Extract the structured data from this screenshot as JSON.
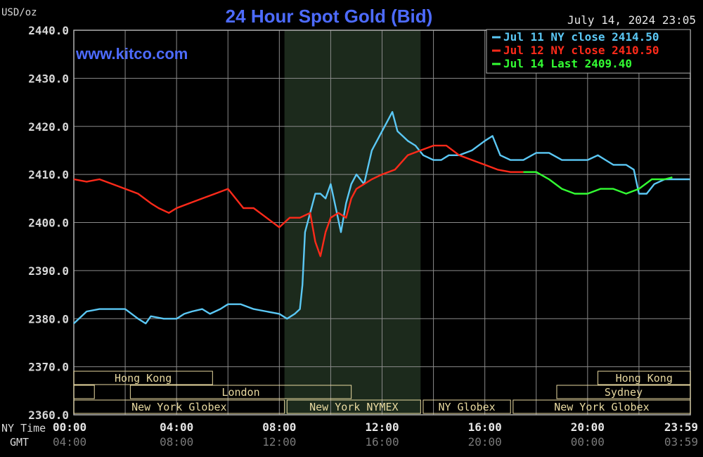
{
  "unit_label": "USD/oz",
  "title": "24 Hour Spot Gold (Bid)",
  "timestamp": "July 14, 2024 23:05",
  "watermark": "www.kitco.com",
  "colors": {
    "title": "#4d6bff",
    "watermark": "#4d6bff",
    "jul11": "#5bc8f5",
    "jul12": "#ff2a1a",
    "jul14": "#33ff33",
    "grid": "#8a8a8a",
    "axis_text": "#d8d8d8",
    "session_fill": "#1c2a1c",
    "session_text": "#e8d9a0"
  },
  "chart_data": {
    "type": "line",
    "ylim": [
      2360,
      2440
    ],
    "xlim": [
      0,
      24
    ],
    "grid": true,
    "y_ticks": [
      "2360.0",
      "2370.0",
      "2380.0",
      "2390.0",
      "2400.0",
      "2410.0",
      "2420.0",
      "2430.0",
      "2440.0"
    ],
    "ny_time_label": "NY Time",
    "gmt_label": "GMT",
    "x_ticks_ny": [
      "00:00",
      "04:00",
      "08:00",
      "12:00",
      "16:00",
      "20:00",
      "23:59"
    ],
    "x_ticks_gmt": [
      "04:00",
      "08:00",
      "12:00",
      "16:00",
      "20:00",
      "00:00",
      "03:59"
    ],
    "series": [
      {
        "name": "Jul 11 NY close 2414.50",
        "color": "#5bc8f5",
        "points": [
          [
            0,
            2379
          ],
          [
            0.5,
            2381.5
          ],
          [
            1,
            2382
          ],
          [
            1.5,
            2382
          ],
          [
            2,
            2382
          ],
          [
            2.5,
            2380
          ],
          [
            2.8,
            2379
          ],
          [
            3,
            2380.5
          ],
          [
            3.5,
            2380
          ],
          [
            4,
            2380
          ],
          [
            4.3,
            2381
          ],
          [
            4.6,
            2381.5
          ],
          [
            5,
            2382
          ],
          [
            5.3,
            2381
          ],
          [
            5.7,
            2382
          ],
          [
            6,
            2383
          ],
          [
            6.5,
            2383
          ],
          [
            7,
            2382
          ],
          [
            7.5,
            2381.5
          ],
          [
            8,
            2381
          ],
          [
            8.3,
            2380
          ],
          [
            8.6,
            2381
          ],
          [
            8.8,
            2382
          ],
          [
            8.9,
            2387
          ],
          [
            9.0,
            2398
          ],
          [
            9.2,
            2402
          ],
          [
            9.4,
            2406
          ],
          [
            9.6,
            2406
          ],
          [
            9.8,
            2405
          ],
          [
            10.0,
            2408
          ],
          [
            10.2,
            2403
          ],
          [
            10.4,
            2398
          ],
          [
            10.6,
            2404
          ],
          [
            10.8,
            2408
          ],
          [
            11.0,
            2410
          ],
          [
            11.3,
            2408
          ],
          [
            11.6,
            2415
          ],
          [
            12.0,
            2419
          ],
          [
            12.2,
            2421
          ],
          [
            12.4,
            2423
          ],
          [
            12.6,
            2419
          ],
          [
            12.8,
            2418
          ],
          [
            13.0,
            2417
          ],
          [
            13.3,
            2416
          ],
          [
            13.6,
            2414
          ],
          [
            14.0,
            2413
          ],
          [
            14.3,
            2413
          ],
          [
            14.6,
            2414
          ],
          [
            15.0,
            2414
          ],
          [
            15.5,
            2415
          ],
          [
            16.0,
            2417
          ],
          [
            16.3,
            2418
          ],
          [
            16.6,
            2414
          ],
          [
            17.0,
            2413
          ],
          [
            17.5,
            2413
          ],
          [
            18.0,
            2414.5
          ],
          [
            18.5,
            2414.5
          ],
          [
            19.0,
            2413
          ],
          [
            19.5,
            2413
          ],
          [
            20.0,
            2413
          ],
          [
            20.4,
            2414
          ],
          [
            20.7,
            2413
          ],
          [
            21.0,
            2412
          ],
          [
            21.5,
            2412
          ],
          [
            21.8,
            2411
          ],
          [
            22.0,
            2406
          ],
          [
            22.3,
            2406
          ],
          [
            22.6,
            2408
          ],
          [
            23.0,
            2409
          ],
          [
            23.5,
            2409
          ],
          [
            23.98,
            2409
          ]
        ]
      },
      {
        "name": "Jul 12 NY close 2410.50",
        "color": "#ff2a1a",
        "points": [
          [
            0,
            2409
          ],
          [
            0.5,
            2408.5
          ],
          [
            1,
            2409
          ],
          [
            1.5,
            2408
          ],
          [
            2,
            2407
          ],
          [
            2.5,
            2406
          ],
          [
            3,
            2404
          ],
          [
            3.3,
            2403
          ],
          [
            3.7,
            2402
          ],
          [
            4,
            2403
          ],
          [
            4.5,
            2404
          ],
          [
            5,
            2405
          ],
          [
            5.5,
            2406
          ],
          [
            6,
            2407
          ],
          [
            6.3,
            2405
          ],
          [
            6.6,
            2403
          ],
          [
            7,
            2403
          ],
          [
            7.5,
            2401
          ],
          [
            8,
            2399
          ],
          [
            8.4,
            2401
          ],
          [
            8.8,
            2401
          ],
          [
            9.2,
            2402
          ],
          [
            9.4,
            2396
          ],
          [
            9.6,
            2393
          ],
          [
            9.8,
            2398
          ],
          [
            10.0,
            2401
          ],
          [
            10.3,
            2402
          ],
          [
            10.6,
            2401
          ],
          [
            10.8,
            2405
          ],
          [
            11.0,
            2407
          ],
          [
            11.3,
            2408
          ],
          [
            11.6,
            2409
          ],
          [
            12.0,
            2410
          ],
          [
            12.5,
            2411
          ],
          [
            13.0,
            2414
          ],
          [
            13.5,
            2415
          ],
          [
            14.0,
            2416
          ],
          [
            14.5,
            2416
          ],
          [
            15.0,
            2414
          ],
          [
            15.5,
            2413
          ],
          [
            16.0,
            2412
          ],
          [
            16.5,
            2411
          ],
          [
            17.0,
            2410.5
          ],
          [
            17.5,
            2410.5
          ]
        ]
      },
      {
        "name": "Jul 14 Last 2409.40",
        "color": "#33ff33",
        "points": [
          [
            17.5,
            2410.5
          ],
          [
            18.0,
            2410.5
          ],
          [
            18.5,
            2409
          ],
          [
            19.0,
            2407
          ],
          [
            19.5,
            2406
          ],
          [
            20.0,
            2406
          ],
          [
            20.5,
            2407
          ],
          [
            21.0,
            2407
          ],
          [
            21.5,
            2406
          ],
          [
            22.0,
            2407
          ],
          [
            22.5,
            2409
          ],
          [
            23.0,
            2409
          ],
          [
            23.3,
            2409.4
          ]
        ]
      }
    ],
    "legend": [
      {
        "label": "Jul 11 NY close 2414.50",
        "color": "#5bc8f5"
      },
      {
        "label": "Jul 12 NY close 2410.50",
        "color": "#ff2a1a"
      },
      {
        "label": "Jul 14 Last 2409.40",
        "color": "#33ff33"
      }
    ],
    "legend_position": "top-right",
    "highlight_band": [
      8.2,
      13.5
    ],
    "sessions": [
      {
        "label": "Hong Kong",
        "row": 0,
        "start": 0.0,
        "end": 5.4
      },
      {
        "label": "",
        "row": 1,
        "start": 0.0,
        "end": 0.8
      },
      {
        "label": "London",
        "row": 1,
        "start": 2.2,
        "end": 10.8
      },
      {
        "label": "New York Globex",
        "row": 2,
        "start": 0.0,
        "end": 8.2
      },
      {
        "label": "New York NYMEX",
        "row": 2,
        "start": 8.3,
        "end": 13.5
      },
      {
        "label": "NY Globex",
        "row": 2,
        "start": 13.6,
        "end": 17.0
      },
      {
        "label": "Hong Kong",
        "row": 0,
        "start": 20.4,
        "end": 24.0
      },
      {
        "label": "Sydney",
        "row": 1,
        "start": 18.8,
        "end": 24.0
      },
      {
        "label": "New York Globex",
        "row": 2,
        "start": 17.1,
        "end": 24.0
      }
    ]
  }
}
